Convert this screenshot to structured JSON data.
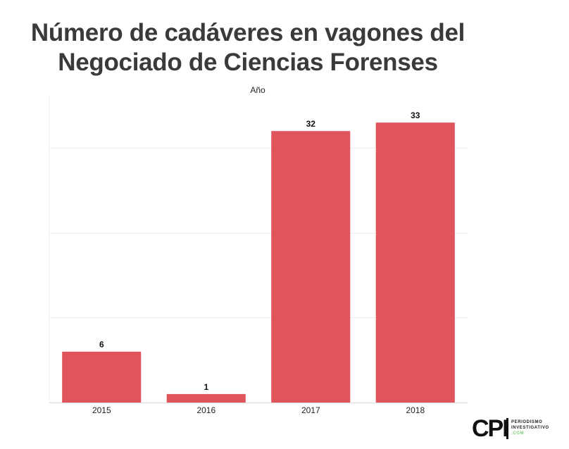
{
  "chart_data": {
    "type": "bar",
    "title_lines": [
      "Número de cadáveres en vagones del",
      "Negociado de Ciencias Forenses"
    ],
    "xlabel": "Año",
    "ylabel": "",
    "categories": [
      "2015",
      "2016",
      "2017",
      "2018"
    ],
    "values": [
      6,
      1,
      32,
      33
    ],
    "data_labels": [
      "6",
      "1",
      "32",
      "33"
    ],
    "ylim": [
      0,
      36
    ],
    "gridlines": [
      0,
      10,
      20,
      30
    ],
    "grid": true,
    "bar_color": "#e0555c",
    "legend": "none"
  },
  "branding": {
    "logo_mark": "CPI",
    "line1": "PERIODISMO",
    "line2": "INVESTIGATIVO",
    "line3": ".COM"
  }
}
